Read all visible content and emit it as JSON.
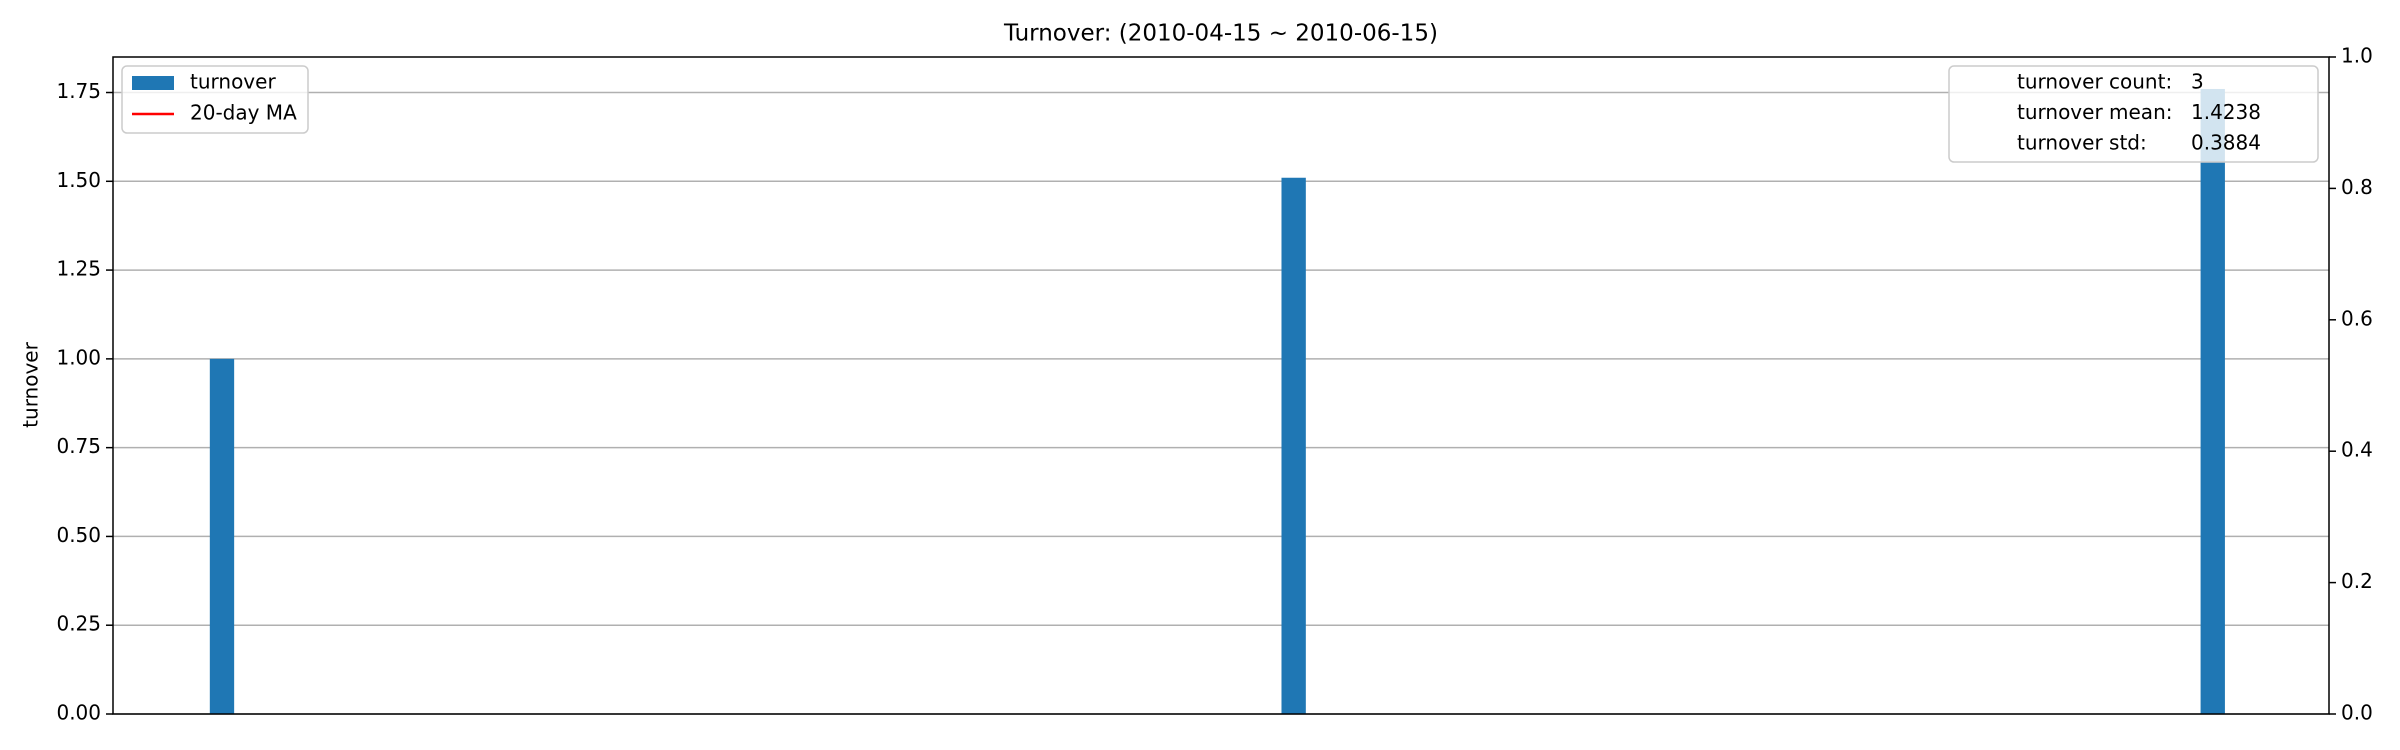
{
  "chart_data": {
    "type": "bar",
    "title": "Turnover: (2010-04-15 ~ 2010-06-15)",
    "y_label": "turnover",
    "x": [
      3,
      32.5,
      57.8
    ],
    "xlim": [
      0,
      61
    ],
    "bar_width": 0.67,
    "series": [
      {
        "name": "turnover",
        "color": "#1f77b4",
        "kind": "bar",
        "values": [
          1.0,
          1.51,
          1.76
        ]
      },
      {
        "name": "20-day MA",
        "color": "#ff0000",
        "kind": "line",
        "values": [
          null,
          null,
          null
        ]
      }
    ],
    "ylim": [
      0,
      1.85
    ],
    "yticks": [
      {
        "value": 0,
        "label": "0.00"
      },
      0.25,
      {
        "value": 0.5,
        "label": "0.50"
      },
      0.75,
      {
        "value": 1,
        "label": "1.00"
      },
      1.25,
      {
        "value": 1.5,
        "label": "1.50"
      },
      1.75
    ],
    "y2lim": [
      0,
      1
    ],
    "y2ticks": [
      {
        "value": 0,
        "label": "0.0"
      },
      0.2,
      0.4,
      0.6,
      0.8,
      {
        "value": 1,
        "label": "1.0"
      }
    ],
    "grid": true,
    "legend": "upper left",
    "stats": [
      {
        "label": "turnover count:",
        "value": 3
      },
      {
        "label": "turnover mean:",
        "value": 1.4238
      },
      {
        "label": "turnover std:",
        "value": 0.3884
      }
    ]
  }
}
